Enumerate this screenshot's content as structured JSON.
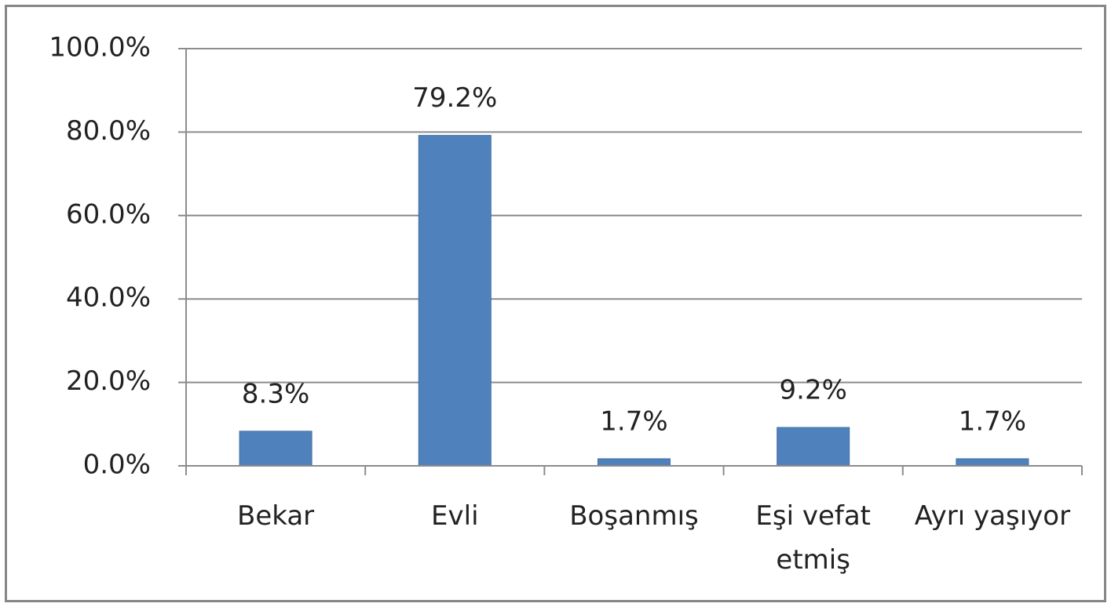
{
  "chart_data": {
    "type": "bar",
    "categories": [
      "Bekar",
      "Evli",
      "Boşanmış",
      "Eşi vefat etmiş",
      "Ayrı yaşıyor"
    ],
    "values": [
      8.3,
      79.2,
      1.7,
      9.2,
      1.7
    ],
    "value_labels": [
      "8.3%",
      "79.2%",
      "1.7%",
      "9.2%",
      "1.7%"
    ],
    "color": "#4f81bd",
    "ylim": [
      0,
      100
    ],
    "yticks": [
      {
        "value": 0,
        "label": "0.0%"
      },
      {
        "value": 20,
        "label": "20.0%"
      },
      {
        "value": 40,
        "label": "40.0%"
      },
      {
        "value": 60,
        "label": "60.0%"
      },
      {
        "value": 80,
        "label": "80.0%"
      },
      {
        "value": 100,
        "label": "100.0%"
      }
    ],
    "grid": true
  }
}
